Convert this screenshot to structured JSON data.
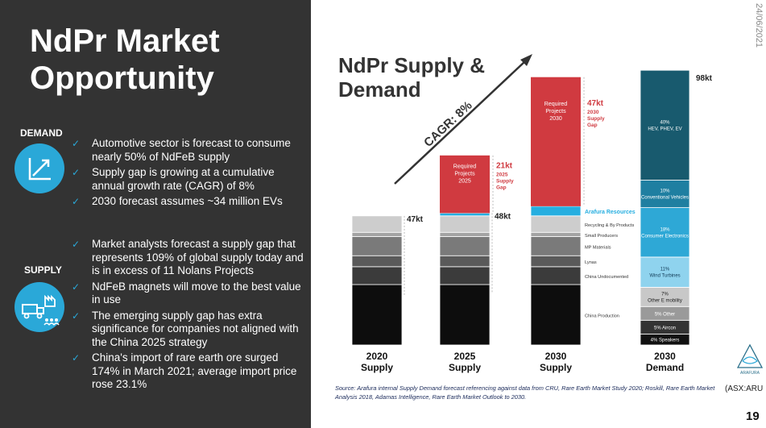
{
  "slide": {
    "title": "NdPr Market Opportunity",
    "date": "24/06/2021",
    "ticker": "(ASX:ARU",
    "page_number": "19",
    "source": "Source: Arafura internal Supply Demand forecast referencing against data from CRU, Rare Earth Market Study 2020; Roskill, Rare Earth Market Analysis 2018, Adamas Intelligence, Rare Earth Market Outlook to 2030.",
    "logo_text": "ARAFURA"
  },
  "demand": {
    "label": "DEMAND",
    "icon": "growth-chart-icon",
    "bullets": [
      "Automotive sector is forecast to consume nearly 50% of NdFeB supply",
      "Supply gap is growing at a cumulative annual growth rate (CAGR) of 8%",
      "2030 forecast assumes ~34 million EVs"
    ]
  },
  "supply": {
    "label": "SUPPLY",
    "icon": "supply-chain-icon",
    "bullets": [
      "Market analysts forecast a supply gap that represents 109% of global supply today and is in excess of 11 Nolans Projects",
      "NdFeB magnets will move to the best value in use",
      "The emerging supply gap has extra significance for companies not aligned with the China 2025 strategy",
      "China's import of rare earth ore surged 174% in March 2021; average import price rose 23.1%"
    ]
  },
  "chart_data": {
    "type": "bar",
    "stacked": true,
    "title": "NdPr Supply & Demand",
    "units": "kt",
    "ylim": [
      0,
      98
    ],
    "trend_label": "CAGR: 8%",
    "categories": [
      {
        "line1": "2020",
        "line2": "Supply"
      },
      {
        "line1": "2025",
        "line2": "Supply"
      },
      {
        "line1": "2030",
        "line2": "Supply"
      },
      {
        "line1": "2030",
        "line2": "Demand"
      }
    ],
    "supply_stacks": [
      {
        "segment_values": [
          22,
          6.5,
          4,
          7,
          1.5,
          6
        ],
        "total": 47,
        "total_label": "47kt"
      },
      {
        "segment_values": [
          22,
          6.5,
          4,
          7,
          1.5,
          6,
          1
        ],
        "total": 48,
        "total_label": "48kt",
        "gap_value": 21,
        "gap_label": "21kt",
        "gap_note": "2025 Supply Gap",
        "gap_box_label": "Required Projects 2025"
      },
      {
        "segment_values": [
          22,
          6.5,
          4,
          7,
          1.5,
          6,
          3.5
        ],
        "total": 51,
        "gap_value": 47,
        "gap_label": "47kt",
        "gap_note": "2030 Supply Gap",
        "gap_box_label": "Required Projects 2030"
      }
    ],
    "supply_segments": [
      {
        "name": "China Production",
        "color": "#0d0d0d"
      },
      {
        "name": "China Undocumented",
        "color": "#3b3b3b"
      },
      {
        "name": "Lynas",
        "color": "#5a5a5a"
      },
      {
        "name": "MP Materials",
        "color": "#7a7a7a"
      },
      {
        "name": "Small Producers",
        "color": "#a3a3a3"
      },
      {
        "name": "Recycling & By Products",
        "color": "#cdcdcd"
      },
      {
        "name": "Arafura Resources",
        "color": "#26aee0"
      }
    ],
    "demand_segments": [
      {
        "label": "4% Speakers",
        "value": 4,
        "color": "#111111",
        "text_color": "#ffffff"
      },
      {
        "label": "5% Aircon",
        "value": 5,
        "color": "#333333",
        "text_color": "#ffffff"
      },
      {
        "label": "5% Other",
        "value": 5,
        "color": "#9a9a9a",
        "text_color": "#ffffff"
      },
      {
        "label": "7% Other E mobility",
        "value": 7,
        "color": "#c8c8c8",
        "text_color": "#222222"
      },
      {
        "label": "11% Wind Turbines",
        "value": 11,
        "color": "#8fd3ee",
        "text_color": "#123a55"
      },
      {
        "label": "18% Consumer Electronics",
        "value": 18,
        "color": "#2ea8d6",
        "text_color": "#ffffff"
      },
      {
        "label": "10% Conventional Vehicles",
        "value": 10,
        "color": "#1f7fa1",
        "text_color": "#ffffff"
      },
      {
        "label": "40% HEV, PHEV, EV",
        "value": 40,
        "color": "#185a6e",
        "text_color": "#ffffff"
      }
    ],
    "demand_total": 98,
    "demand_total_label": "98kt",
    "gap_color": "#d03a40"
  }
}
